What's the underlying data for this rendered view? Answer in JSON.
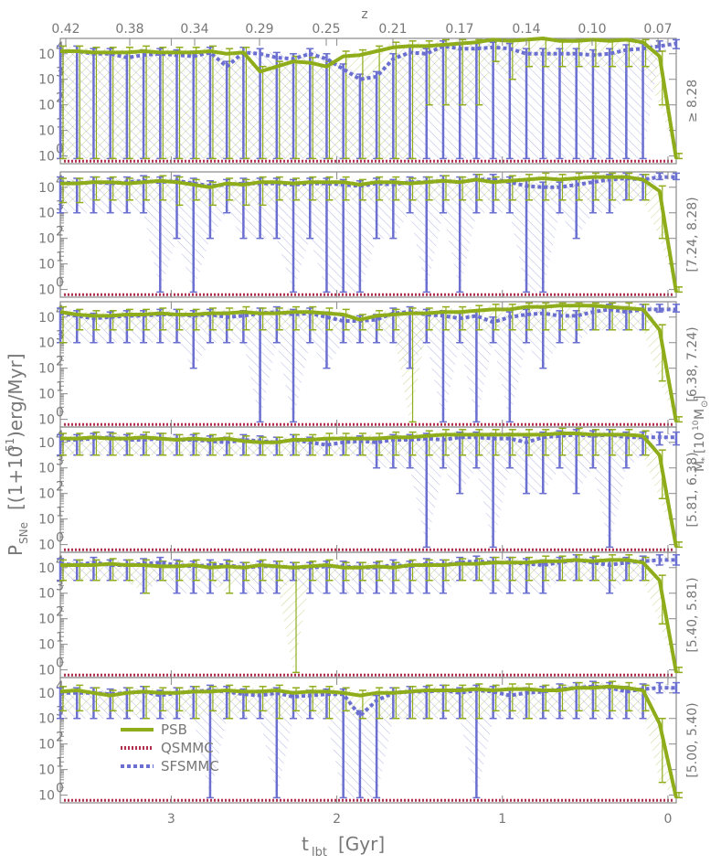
{
  "chart_data": {
    "type": "line",
    "xlabel": "t",
    "xlabel_sub": "lbt",
    "xlabel_unit": "[Gyr]",
    "ylabel_main": "P",
    "ylabel_sub": "SNe",
    "ylabel_rest": "[(1+10",
    "ylabel_sup": "51",
    "ylabel_tail": ")erg/Myr]",
    "top_axis_label": "z",
    "top_ticks": [
      {
        "t": 3.67,
        "z": "0.42"
      },
      {
        "t": 3.17,
        "z": "0.38"
      },
      {
        "t": 2.67,
        "z": "0.34"
      },
      {
        "t": 2.16,
        "z": "0.29"
      },
      {
        "t": 1.66,
        "z": "0.25"
      },
      {
        "t": 1.16,
        "z": "0.21"
      },
      {
        "t": 0.66,
        "z": "0.17"
      },
      {
        "t": 0.15,
        "z": "0.14"
      },
      {
        "t": -0.35,
        "z": "0.10"
      },
      {
        "t": -0.85,
        "z": "0.07"
      }
    ],
    "x_ticks": [
      3,
      2,
      1,
      0
    ],
    "xlim": [
      3.67,
      -0.05
    ],
    "y_scale": "log",
    "y_tick_labels": [
      "10",
      "10",
      "10",
      "10",
      "10"
    ],
    "y_tick_exps": [
      "0",
      "1",
      "2",
      "3",
      "4"
    ],
    "ylim_log10": [
      -0.3,
      4.6
    ],
    "mass_axis_label_main": "M",
    "mass_axis_label_sub": "*",
    "mass_axis_label_unit": "[10",
    "mass_axis_label_sup": "10",
    "mass_axis_label_tail": "M",
    "mass_axis_label_sun_sub": "⊙",
    "mass_axis_label_close": "]",
    "legend": [
      {
        "name": "PSB",
        "color": "#8fad1a"
      },
      {
        "name": "QSMMC",
        "color": "#b0304e"
      },
      {
        "name": "SFSMMC",
        "color": "#6a6fd0"
      }
    ],
    "colors": {
      "psb": "#8fad1a",
      "qs": "#b0304e",
      "sf": "#6a6fd0",
      "axis": "#8a8a8a"
    },
    "panels": [
      {
        "label": "≥ 8.28",
        "psb": [
          4.1,
          4.1,
          4.05,
          4.05,
          4.05,
          4.1,
          4.05,
          4.05,
          4.05,
          4.1,
          4.0,
          4.05,
          3.3,
          3.5,
          3.7,
          3.65,
          3.5,
          3.9,
          3.95,
          4.1,
          4.25,
          4.3,
          4.3,
          4.35,
          4.4,
          4.45,
          4.55,
          4.5,
          4.55,
          4.6,
          4.5,
          4.5,
          4.55,
          4.5,
          4.55,
          4.45,
          3.9,
          -0.1
        ],
        "psb_lo": [
          -0.1,
          -0.1,
          -0.1,
          -0.1,
          -0.1,
          -0.1,
          -0.1,
          -0.1,
          -0.1,
          -0.1,
          -0.1,
          -0.1,
          -0.1,
          -0.1,
          -0.1,
          -0.1,
          -0.1,
          -0.1,
          -0.1,
          -0.1,
          -0.1,
          -0.1,
          2.0,
          2.0,
          2.0,
          2.0,
          3.7,
          3.0,
          3.5,
          3.5,
          3.5,
          3.5,
          3.5,
          3.5,
          3.5,
          3.5,
          2.0,
          -0.1
        ],
        "sf": [
          4.1,
          4.1,
          4.0,
          4.0,
          3.85,
          3.95,
          4.0,
          3.95,
          3.9,
          4.05,
          3.5,
          4.05,
          4.0,
          3.85,
          3.8,
          4.0,
          3.8,
          3.4,
          3.0,
          3.1,
          3.8,
          4.05,
          4.0,
          4.3,
          4.2,
          4.2,
          4.25,
          4.2,
          4.0,
          4.0,
          4.0,
          4.0,
          3.95,
          4.0,
          4.15,
          4.2,
          4.3,
          4.4
        ],
        "sf_lo": [
          -0.1,
          -0.1,
          -0.1,
          -0.1,
          -0.1,
          -0.1,
          -0.1,
          -0.1,
          -0.1,
          -0.1,
          -0.1,
          -0.1,
          -0.1,
          -0.1,
          -0.1,
          -0.1,
          -0.1,
          -0.1,
          -0.1,
          -0.1,
          -0.1,
          -0.1,
          -0.1,
          -0.1,
          -0.1,
          -0.1,
          -0.1,
          -0.1,
          -0.1,
          -0.1,
          -0.1,
          -0.1,
          -0.1,
          -0.1,
          -0.1,
          -0.1,
          4.1,
          4.2
        ]
      },
      {
        "label": "[7.24, 8.28)",
        "psb": [
          4.15,
          4.15,
          4.2,
          4.2,
          4.15,
          4.2,
          4.25,
          4.2,
          4.1,
          4.0,
          4.15,
          4.1,
          4.2,
          4.2,
          4.15,
          4.2,
          4.2,
          4.2,
          4.1,
          4.2,
          4.2,
          4.15,
          4.2,
          4.25,
          4.2,
          4.3,
          4.2,
          4.25,
          4.3,
          4.35,
          4.3,
          4.35,
          4.4,
          4.4,
          4.4,
          4.3,
          3.85,
          -0.1
        ],
        "psb_lo": [
          3.4,
          3.4,
          3.5,
          3.5,
          3.5,
          3.5,
          3.5,
          3.3,
          3.5,
          3.3,
          3.5,
          3.3,
          3.3,
          3.5,
          3.5,
          3.5,
          3.5,
          3.5,
          3.5,
          3.5,
          3.5,
          3.5,
          3.5,
          3.5,
          3.5,
          3.5,
          3.5,
          3.5,
          3.5,
          3.5,
          3.5,
          3.5,
          3.5,
          3.5,
          3.5,
          3.5,
          2.0,
          -0.1
        ],
        "sf": [
          4.2,
          4.15,
          4.2,
          4.15,
          4.2,
          4.25,
          4.2,
          4.25,
          4.15,
          4.05,
          4.1,
          4.15,
          4.15,
          4.15,
          4.1,
          4.15,
          4.15,
          4.1,
          4.05,
          4.15,
          4.1,
          4.2,
          4.2,
          4.25,
          4.2,
          4.3,
          4.3,
          4.2,
          4.05,
          4.0,
          4.0,
          4.1,
          4.2,
          4.3,
          4.35,
          4.3,
          4.4,
          4.4
        ],
        "sf_lo": [
          3.0,
          3.0,
          3.0,
          3.0,
          3.0,
          3.0,
          -0.1,
          2.0,
          -0.1,
          2.0,
          3.0,
          2.0,
          2.0,
          2.0,
          -0.1,
          2.0,
          -0.1,
          -0.1,
          -0.1,
          2.0,
          2.0,
          3.0,
          -0.1,
          3.0,
          -0.1,
          3.0,
          3.0,
          3.0,
          -0.1,
          -0.1,
          3.0,
          2.0,
          3.0,
          3.0,
          3.5,
          3.5,
          4.3,
          4.3
        ]
      },
      {
        "label": "[6.38, 7.24)",
        "psb": [
          4.2,
          4.1,
          4.05,
          4.05,
          4.1,
          4.1,
          4.15,
          4.1,
          4.1,
          4.15,
          4.15,
          4.2,
          4.15,
          4.15,
          4.2,
          4.2,
          4.15,
          4.1,
          3.9,
          4.05,
          4.1,
          4.15,
          4.15,
          4.2,
          4.2,
          4.25,
          4.3,
          4.3,
          4.4,
          4.4,
          4.45,
          4.45,
          4.45,
          4.4,
          4.35,
          4.3,
          3.5,
          -0.1
        ],
        "psb_lo": [
          3.0,
          3.5,
          3.5,
          3.5,
          3.5,
          3.5,
          3.5,
          3.5,
          3.5,
          3.5,
          3.5,
          3.5,
          3.5,
          3.5,
          3.5,
          3.5,
          3.5,
          3.5,
          3.5,
          3.5,
          3.5,
          -0.1,
          3.5,
          3.5,
          3.5,
          3.5,
          3.5,
          3.5,
          3.5,
          3.5,
          3.5,
          3.5,
          3.5,
          3.5,
          3.5,
          3.5,
          1.5,
          -0.1
        ],
        "sf": [
          4.15,
          4.05,
          3.95,
          4.0,
          4.05,
          4.05,
          4.1,
          4.1,
          4.05,
          4.1,
          4.0,
          4.05,
          4.15,
          4.2,
          4.1,
          4.15,
          4.0,
          3.85,
          3.85,
          3.9,
          4.15,
          4.2,
          4.1,
          4.05,
          3.95,
          4.05,
          3.8,
          4.0,
          4.1,
          4.15,
          4.05,
          4.05,
          4.2,
          4.3,
          4.2,
          4.3,
          4.3,
          4.3
        ],
        "sf_lo": [
          3.0,
          3.0,
          3.0,
          3.0,
          3.0,
          3.0,
          3.0,
          3.0,
          2.0,
          3.0,
          3.0,
          3.0,
          -0.1,
          3.0,
          -0.1,
          3.0,
          2.0,
          3.0,
          3.0,
          3.0,
          3.0,
          2.0,
          3.0,
          -0.1,
          3.0,
          -0.1,
          3.0,
          -0.1,
          3.0,
          2.0,
          3.0,
          3.0,
          3.5,
          3.5,
          3.5,
          3.5,
          4.2,
          4.2
        ]
      },
      {
        "label": "[5.81, 6.38)",
        "psb": [
          4.15,
          4.15,
          4.2,
          4.15,
          4.15,
          4.2,
          4.15,
          4.1,
          4.15,
          4.1,
          4.15,
          4.05,
          4.0,
          4.0,
          4.1,
          4.1,
          4.15,
          4.15,
          4.15,
          4.15,
          4.2,
          4.2,
          4.25,
          4.3,
          4.3,
          4.3,
          4.3,
          4.3,
          4.3,
          4.3,
          4.35,
          4.35,
          4.3,
          4.3,
          4.3,
          4.25,
          3.5,
          -0.1
        ],
        "psb_lo": [
          3.5,
          3.5,
          3.5,
          3.5,
          3.5,
          3.5,
          3.5,
          3.5,
          3.5,
          3.5,
          3.5,
          3.5,
          3.5,
          3.5,
          3.5,
          3.5,
          3.5,
          3.5,
          3.5,
          3.5,
          3.5,
          3.5,
          3.5,
          3.5,
          3.5,
          3.5,
          3.5,
          3.5,
          3.5,
          3.5,
          3.5,
          3.5,
          3.5,
          3.5,
          3.5,
          3.5,
          1.8,
          -0.1
        ],
        "sf": [
          4.1,
          4.1,
          4.15,
          4.2,
          4.1,
          4.1,
          4.15,
          4.1,
          4.1,
          4.05,
          4.0,
          4.1,
          4.05,
          4.0,
          4.1,
          4.0,
          3.9,
          4.0,
          4.05,
          4.0,
          4.1,
          4.1,
          4.15,
          4.1,
          4.2,
          4.2,
          4.15,
          4.15,
          4.0,
          4.2,
          4.25,
          4.3,
          4.25,
          4.3,
          4.2,
          4.2,
          4.2,
          4.2
        ],
        "sf_lo": [
          3.5,
          3.5,
          3.5,
          3.5,
          3.5,
          3.5,
          3.5,
          3.5,
          3.5,
          3.5,
          3.5,
          3.5,
          3.5,
          3.5,
          3.5,
          3.5,
          3.5,
          3.5,
          3.5,
          3.0,
          3.0,
          3.0,
          -0.1,
          3.0,
          2.0,
          3.0,
          -0.1,
          3.0,
          2.0,
          2.0,
          3.0,
          2.0,
          3.0,
          -0.1,
          3.0,
          3.5,
          3.9,
          3.9
        ]
      },
      {
        "label": "[5.40, 5.81)",
        "psb": [
          4.1,
          4.1,
          4.1,
          4.15,
          4.1,
          4.1,
          4.05,
          4.05,
          4.1,
          4.0,
          4.05,
          4.0,
          4.1,
          4.05,
          4.0,
          4.05,
          4.1,
          4.0,
          4.0,
          4.05,
          4.0,
          4.1,
          4.1,
          4.1,
          4.15,
          4.15,
          4.2,
          4.2,
          4.2,
          4.25,
          4.25,
          4.3,
          4.25,
          4.3,
          4.3,
          4.2,
          3.5,
          -0.1
        ],
        "psb_lo": [
          3.5,
          3.5,
          3.5,
          3.5,
          3.5,
          3.0,
          3.5,
          3.5,
          3.5,
          3.5,
          3.0,
          3.5,
          3.5,
          3.5,
          -0.1,
          3.5,
          3.5,
          3.5,
          3.5,
          3.5,
          3.5,
          3.5,
          3.5,
          3.5,
          3.5,
          3.5,
          3.5,
          3.5,
          3.5,
          3.5,
          3.5,
          3.5,
          3.5,
          3.5,
          3.5,
          3.5,
          1.8,
          -0.1
        ],
        "sf": [
          4.15,
          4.1,
          4.2,
          4.1,
          4.1,
          4.15,
          4.2,
          4.1,
          4.05,
          4.1,
          4.1,
          4.0,
          4.05,
          4.05,
          4.0,
          4.0,
          4.05,
          4.05,
          4.0,
          4.0,
          4.1,
          4.05,
          4.15,
          4.1,
          4.2,
          4.25,
          4.2,
          4.2,
          4.15,
          4.1,
          4.2,
          4.3,
          4.2,
          4.1,
          4.2,
          4.25,
          4.3,
          4.3
        ],
        "sf_lo": [
          3.5,
          3.5,
          3.5,
          3.5,
          3.5,
          3.0,
          3.5,
          3.0,
          3.0,
          3.0,
          3.5,
          3.0,
          3.0,
          3.0,
          3.5,
          3.0,
          3.0,
          3.0,
          3.0,
          3.0,
          3.0,
          3.0,
          3.0,
          3.0,
          3.5,
          3.5,
          3.0,
          3.0,
          3.0,
          3.0,
          3.5,
          3.5,
          3.5,
          3.0,
          3.5,
          3.5,
          4.1,
          4.1
        ]
      },
      {
        "label": "[5.00, 5.40)",
        "psb": [
          4.05,
          4.1,
          4.0,
          3.9,
          4.0,
          4.05,
          4.0,
          4.0,
          4.05,
          4.05,
          4.1,
          4.05,
          4.05,
          4.1,
          4.0,
          4.05,
          4.05,
          4.0,
          3.9,
          4.0,
          4.0,
          4.05,
          4.1,
          4.1,
          4.1,
          4.15,
          4.1,
          4.15,
          4.15,
          4.1,
          4.1,
          4.2,
          4.2,
          4.25,
          4.2,
          4.1,
          2.8,
          -0.1
        ],
        "psb_lo": [
          3.3,
          3.3,
          3.3,
          3.3,
          3.3,
          3.0,
          3.3,
          3.3,
          3.0,
          3.3,
          3.0,
          3.3,
          3.3,
          3.0,
          3.3,
          3.3,
          3.0,
          3.3,
          3.0,
          3.0,
          3.0,
          3.0,
          3.0,
          3.3,
          3.0,
          3.0,
          3.3,
          3.3,
          3.0,
          3.3,
          3.3,
          3.3,
          3.3,
          3.3,
          3.3,
          3.3,
          0.5,
          -0.1
        ],
        "sf": [
          4.0,
          4.0,
          4.0,
          3.95,
          4.0,
          4.05,
          3.9,
          4.0,
          4.05,
          4.1,
          4.05,
          3.95,
          3.9,
          4.0,
          3.85,
          3.9,
          3.95,
          3.95,
          3.1,
          3.7,
          4.0,
          4.05,
          4.05,
          4.1,
          4.0,
          4.1,
          4.05,
          3.9,
          4.0,
          4.05,
          4.15,
          4.2,
          4.25,
          4.2,
          4.05,
          4.15,
          4.2,
          4.2
        ],
        "sf_lo": [
          3.0,
          3.0,
          3.0,
          3.0,
          3.0,
          3.0,
          3.0,
          3.0,
          3.0,
          -0.1,
          3.0,
          3.0,
          3.0,
          -0.1,
          3.0,
          3.0,
          3.0,
          -0.1,
          -0.1,
          -0.1,
          3.0,
          3.0,
          3.0,
          3.0,
          3.0,
          -0.1,
          3.0,
          3.0,
          3.0,
          3.0,
          3.0,
          3.0,
          3.0,
          3.0,
          3.0,
          3.0,
          4.0,
          4.0
        ]
      }
    ]
  }
}
